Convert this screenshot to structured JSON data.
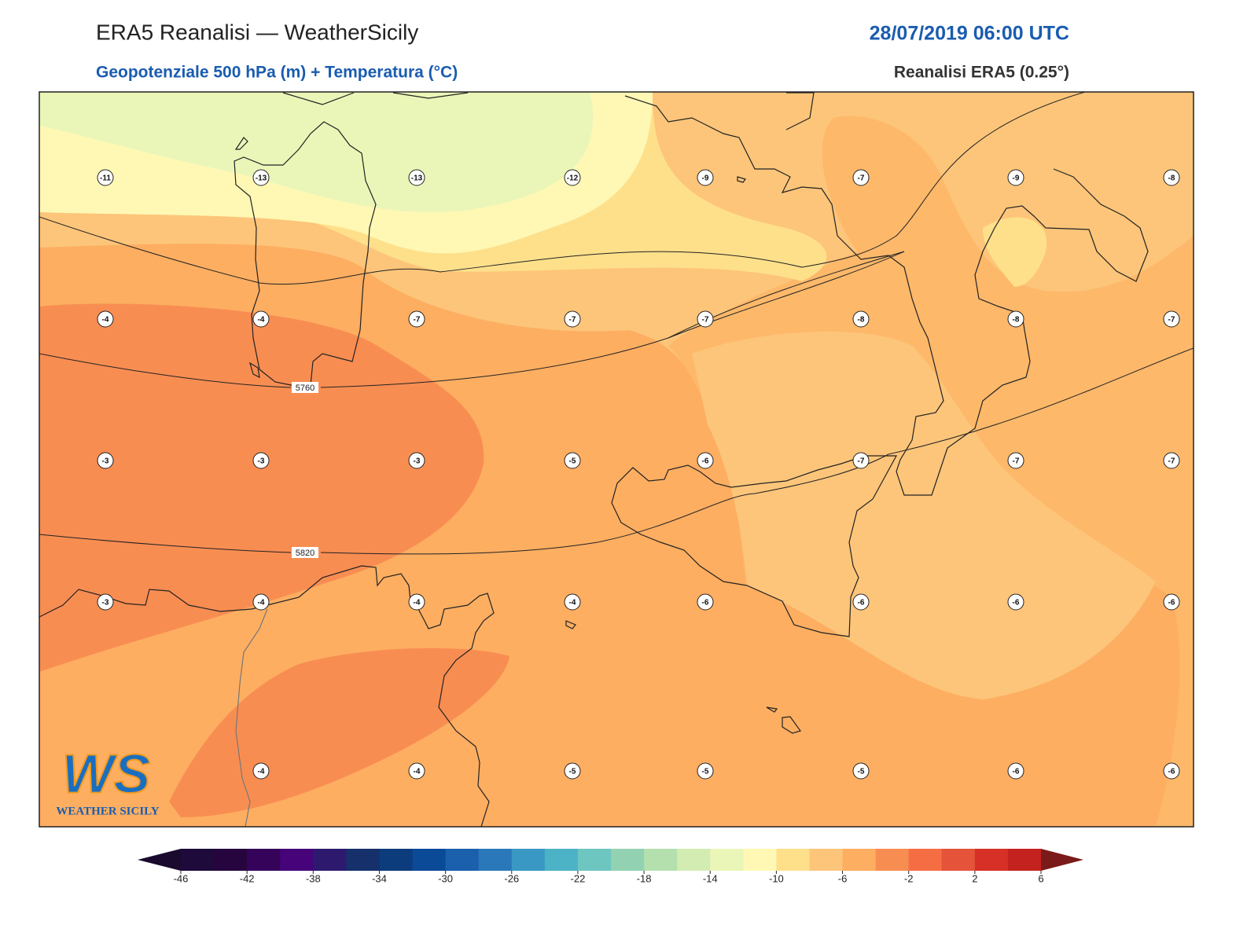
{
  "header": {
    "title": "ERA5 Reanalisi — WeatherSicily",
    "datetime": "28/07/2019 06:00 UTC",
    "subtitle": "Geopotenziale 500 hPa (m) + Temperatura (°C)",
    "source": "Reanalisi ERA5 (0.25°)"
  },
  "grid_labels": [
    [
      -11,
      -13,
      -13,
      -12,
      -9,
      -7,
      -9,
      -8
    ],
    [
      -4,
      -4,
      -7,
      -7,
      -7,
      -8,
      -8,
      -7
    ],
    [
      -3,
      -3,
      -3,
      -5,
      -6,
      -7,
      -7,
      -7
    ],
    [
      -3,
      -4,
      -4,
      -4,
      -6,
      -6,
      -6,
      -6
    ],
    [
      null,
      -4,
      -4,
      -5,
      -5,
      -5,
      -6,
      -6
    ]
  ],
  "contour_labels": [
    5760,
    5820
  ],
  "colorbar": {
    "ticks": [
      -46,
      -42,
      -38,
      -34,
      -30,
      -26,
      -22,
      -18,
      -14,
      -10,
      -6,
      -2,
      2,
      6
    ],
    "colors": [
      "#1e0b3c",
      "#26053f",
      "#35045a",
      "#46037a",
      "#2d1a6e",
      "#15306a",
      "#0c3c7c",
      "#0a4a96",
      "#1a60ac",
      "#2a78ba",
      "#3a98c4",
      "#4cb2c6",
      "#6ec6c0",
      "#92d2b2",
      "#b4e0ae",
      "#d2ecb2",
      "#eaf6b8",
      "#fff8b4",
      "#fee08b",
      "#fdc57a",
      "#fdae61",
      "#f88d52",
      "#f46d43",
      "#e5533a",
      "#d73027",
      "#c4221f"
    ],
    "under_color": "#1a0a2e",
    "over_color": "#7a1a1a"
  },
  "logo": {
    "mark": "WS",
    "name": "WEATHER SICILY"
  }
}
